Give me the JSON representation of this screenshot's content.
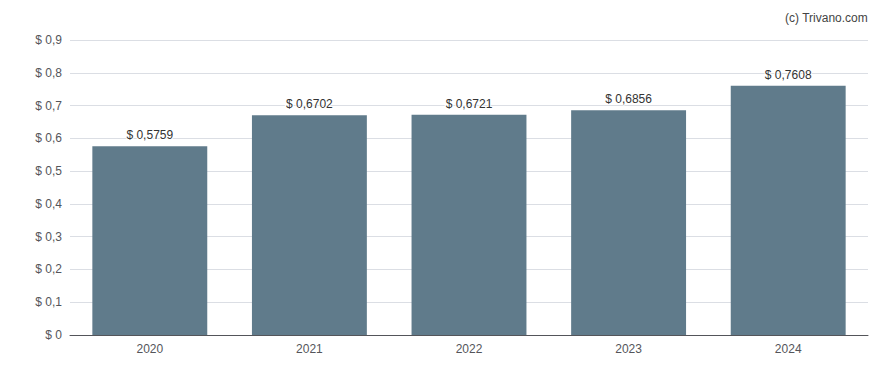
{
  "chart_data": {
    "type": "bar",
    "categories": [
      "2020",
      "2021",
      "2022",
      "2023",
      "2024"
    ],
    "values": [
      0.5759,
      0.6702,
      0.6721,
      0.6856,
      0.7608
    ],
    "value_labels": [
      "$ 0,5759",
      "$ 0,6702",
      "$ 0,6721",
      "$ 0,6856",
      "$ 0,7608"
    ],
    "data_labels": true,
    "color": "#607b8b",
    "ylim": [
      0,
      0.9
    ],
    "yticks": [
      {
        "value": 0.0,
        "label": "$ 0"
      },
      {
        "value": 0.1,
        "label": "$ 0,1"
      },
      {
        "value": 0.2,
        "label": "$ 0,2"
      },
      {
        "value": 0.3,
        "label": "$ 0,3"
      },
      {
        "value": 0.4,
        "label": "$ 0,4"
      },
      {
        "value": 0.5,
        "label": "$ 0,5"
      },
      {
        "value": 0.6,
        "label": "$ 0,6"
      },
      {
        "value": 0.7,
        "label": "$ 0,7"
      },
      {
        "value": 0.8,
        "label": "$ 0,8"
      },
      {
        "value": 0.9,
        "label": "$ 0,9"
      }
    ],
    "grid": true,
    "annotations": [
      "(c) Trivano.com"
    ]
  }
}
